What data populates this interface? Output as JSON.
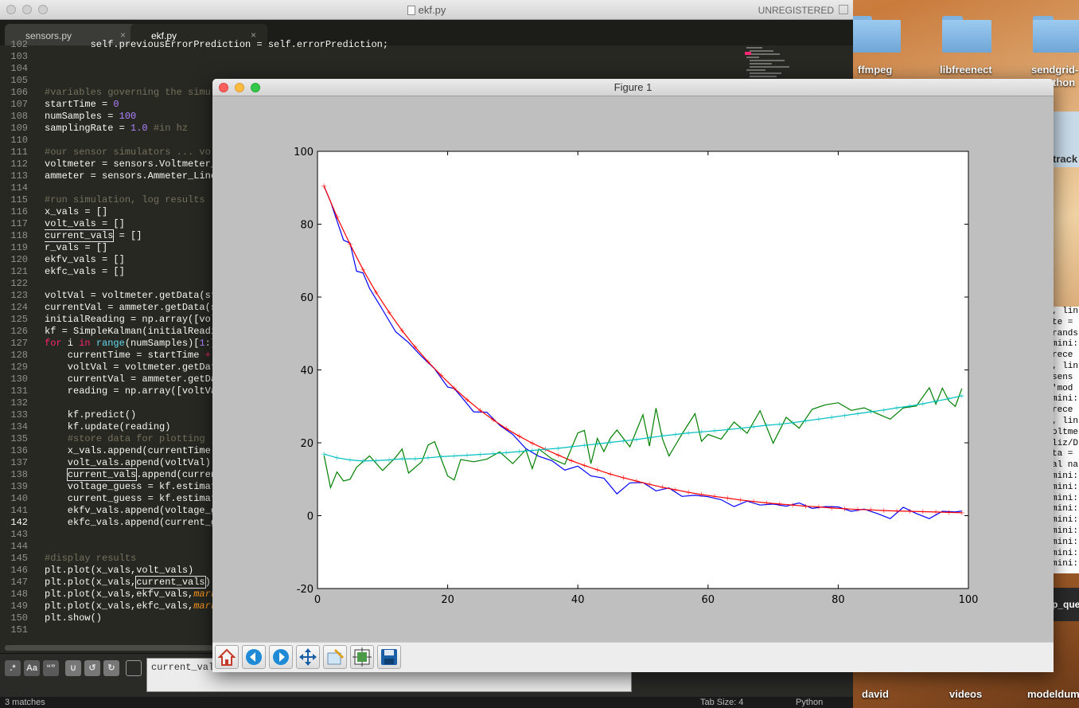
{
  "editor": {
    "window_title": "ekf.py",
    "unregistered": "UNREGISTERED",
    "tabs": [
      {
        "label": "sensors.py",
        "close": "×"
      },
      {
        "label": "ekf.py",
        "close": "×"
      }
    ],
    "lines": [
      {
        "num": "102",
        "html": "        self.previousErrorPrediction = self.errorPrediction;"
      },
      {
        "num": "103",
        "html": ""
      },
      {
        "num": "104",
        "html": ""
      },
      {
        "num": "105",
        "html": ""
      },
      {
        "num": "106",
        "html": "<span class='c'>#variables governing the simul</span>"
      },
      {
        "num": "107",
        "html": "startTime = <span class='n'>0</span>"
      },
      {
        "num": "108",
        "html": "numSamples = <span class='n'>100</span>"
      },
      {
        "num": "109",
        "html": "samplingRate = <span class='n'>1.0</span> <span class='c'>#in hz</span>"
      },
      {
        "num": "110",
        "html": ""
      },
      {
        "num": "111",
        "html": "<span class='c'>#our sensor simulators ... vol</span>"
      },
      {
        "num": "112",
        "html": "voltmeter = sensors.Voltmeter_"
      },
      {
        "num": "113",
        "html": "ammeter = sensors.Ammeter_Line"
      },
      {
        "num": "114",
        "html": ""
      },
      {
        "num": "115",
        "html": "<span class='c'>#run simulation, log results</span>"
      },
      {
        "num": "116",
        "html": "x_vals = []"
      },
      {
        "num": "117",
        "html": "volt_vals = []"
      },
      {
        "num": "118",
        "html": "<span class='hl'>current_vals</span> = []"
      },
      {
        "num": "119",
        "html": "r_vals = []"
      },
      {
        "num": "120",
        "html": "ekfv_vals = []"
      },
      {
        "num": "121",
        "html": "ekfc_vals = []"
      },
      {
        "num": "122",
        "html": ""
      },
      {
        "num": "123",
        "html": "voltVal = voltmeter.getData(st"
      },
      {
        "num": "124",
        "html": "currentVal = ammeter.getData(s"
      },
      {
        "num": "125",
        "html": "initialReading = np.array([vol"
      },
      {
        "num": "126",
        "html": "kf = SimpleKalman(initialReadi"
      },
      {
        "num": "127",
        "html": "<span class='k'>for</span> i <span class='k'>in</span> <span class='b'>range</span>(numSamples)[<span class='n'>1</span>:]"
      },
      {
        "num": "128",
        "html": "    currentTime = startTime <span class='k'>+</span>"
      },
      {
        "num": "129",
        "html": "    voltVal = voltmeter.getDat"
      },
      {
        "num": "130",
        "html": "    currentVal = ammeter.getDa"
      },
      {
        "num": "131",
        "html": "    reading = np.array([voltVa"
      },
      {
        "num": "132",
        "html": ""
      },
      {
        "num": "133",
        "html": "    kf.predict()"
      },
      {
        "num": "134",
        "html": "    kf.update(reading)"
      },
      {
        "num": "135",
        "html": "    <span class='c'>#store data for plotting</span>"
      },
      {
        "num": "136",
        "html": "    x_vals.append(currentTime)"
      },
      {
        "num": "137",
        "html": "    volt_vals.append(voltVal)"
      },
      {
        "num": "138",
        "html": "    <span class='hl'>current_vals</span>.append(curren"
      },
      {
        "num": "139",
        "html": "    voltage_guess = kf.estimat"
      },
      {
        "num": "140",
        "html": "    current_guess = kf.estimat"
      },
      {
        "num": "141",
        "html": "    ekfv_vals.append(voltage_g"
      },
      {
        "num": "142",
        "html": "    ekfc_vals.append(current_g"
      },
      {
        "num": "143",
        "html": ""
      },
      {
        "num": "144",
        "html": ""
      },
      {
        "num": "145",
        "html": "<span class='c'>#display results</span>"
      },
      {
        "num": "146",
        "html": "plt.plot(x_vals,volt_vals)"
      },
      {
        "num": "147",
        "html": "plt.plot(x_vals,<span class='hl'>current_vals</span>)"
      },
      {
        "num": "148",
        "html": "plt.plot(x_vals,ekfv_vals,<span class='i'>mark</span>"
      },
      {
        "num": "149",
        "html": "plt.plot(x_vals,ekfc_vals,<span class='i'>mark</span>"
      },
      {
        "num": "150",
        "html": "plt.show()"
      },
      {
        "num": "151",
        "html": ""
      }
    ],
    "find_buttons": [
      ".*",
      "Aa",
      "“”"
    ],
    "find_value": "current_vals",
    "status_left": "3 matches",
    "status_tab": "Tab Size: 4",
    "status_lang": "Python"
  },
  "desktop": {
    "folders": [
      {
        "label": "ffmpeg"
      },
      {
        "label": "libfreenect"
      },
      {
        "label": "sendgrid-"
      }
    ],
    "folder_sub": "thon",
    "track_label": "track",
    "bottom_labels": [
      {
        "label": "david"
      },
      {
        "label": "videos"
      },
      {
        "label": "modeldum"
      }
    ],
    "terminal_lines": [
      ", lin",
      "te =",
      "rands",
      "mini:",
      " rece",
      ", lin",
      " sens",
      " 'mod",
      "mini:",
      " rece",
      ", lin",
      "oltme",
      "liz/D",
      "ta =",
      "al na",
      "mini:",
      "mini:",
      "mini:",
      "mini:",
      "mini:",
      "mini:",
      "mini:",
      "mini:",
      "mini:"
    ],
    "terminal_tab": "p_que"
  },
  "figure": {
    "title": "Figure 1",
    "toolbar": [
      {
        "name": "home-icon"
      },
      {
        "name": "back-icon"
      },
      {
        "name": "forward-icon"
      },
      {
        "name": "pan-icon"
      },
      {
        "name": "zoom-icon"
      },
      {
        "name": "subplots-icon"
      },
      {
        "name": "save-icon"
      }
    ]
  },
  "chart_data": {
    "type": "line",
    "xlim": [
      0,
      100
    ],
    "ylim": [
      -20,
      100
    ],
    "xticks": [
      0,
      20,
      40,
      60,
      80,
      100
    ],
    "yticks": [
      -20,
      0,
      20,
      40,
      60,
      80,
      100
    ],
    "grid": false,
    "series": [
      {
        "color": "#0000ff",
        "marker": "none",
        "x": [
          1,
          2,
          4,
          5,
          6,
          7,
          8,
          10,
          12,
          14,
          16,
          18,
          20,
          21,
          22,
          24,
          26,
          28,
          30,
          32,
          34,
          36,
          38,
          40,
          42,
          44,
          46,
          48,
          50,
          52,
          54,
          56,
          58,
          60,
          62,
          64,
          66,
          68,
          70,
          72,
          74,
          76,
          78,
          80,
          82,
          84,
          86,
          88,
          90,
          92,
          94,
          96,
          98,
          99
        ],
        "y": [
          90.4,
          86.2,
          75.6,
          74.8,
          67.1,
          66.6,
          62.4,
          56.5,
          50.5,
          47.5,
          43.7,
          40.3,
          35.3,
          34.9,
          32.8,
          28.5,
          28.4,
          24.8,
          22.3,
          18.4,
          16.3,
          15.1,
          12.5,
          13.6,
          10.9,
          10.3,
          6.0,
          9.0,
          9.1,
          6.8,
          7.6,
          5.3,
          5.6,
          5.2,
          4.4,
          2.5,
          4.0,
          2.9,
          3.2,
          2.6,
          3.5,
          2.0,
          2.5,
          2.4,
          1.2,
          1.8,
          0.6,
          -0.8,
          2.3,
          0.6,
          -0.8,
          1.2,
          1.0,
          1.3
        ]
      },
      {
        "color": "#ff0000",
        "marker": "+",
        "x": [
          1,
          3,
          5,
          7,
          9,
          11,
          13,
          15,
          17,
          19,
          21,
          23,
          25,
          27,
          29,
          31,
          33,
          35,
          37,
          39,
          41,
          43,
          45,
          47,
          49,
          51,
          53,
          55,
          57,
          59,
          61,
          63,
          65,
          67,
          69,
          71,
          73,
          75,
          77,
          79,
          81,
          83,
          85,
          87,
          89,
          91,
          93,
          95,
          97,
          99
        ],
        "y": [
          90.5,
          82,
          74.5,
          67.5,
          61.3,
          55.8,
          50.8,
          46.3,
          42.2,
          38.5,
          35.0,
          31.8,
          28.9,
          26.3,
          23.9,
          21.8,
          19.9,
          18.2,
          16.6,
          15.1,
          13.8,
          12.6,
          11.4,
          10.4,
          9.5,
          8.6,
          7.8,
          7.1,
          6.4,
          5.8,
          5.3,
          4.8,
          4.3,
          3.9,
          3.5,
          3.2,
          2.9,
          2.6,
          2.4,
          2.1,
          1.9,
          1.7,
          1.6,
          1.4,
          1.3,
          1.2,
          1.1,
          1.0,
          0.9,
          0.8
        ]
      },
      {
        "color": "#008000",
        "marker": "none",
        "x": [
          1,
          2,
          3,
          4,
          5,
          6,
          8,
          10,
          12,
          13,
          14,
          16,
          17,
          18,
          20,
          21,
          22,
          24,
          26,
          28,
          30,
          32,
          33,
          34,
          36,
          38,
          40,
          41,
          42,
          43,
          44,
          45,
          46,
          48,
          50,
          51,
          52,
          53,
          54,
          56,
          58,
          59,
          60,
          62,
          64,
          66,
          68,
          70,
          72,
          74,
          76,
          78,
          80,
          82,
          84,
          86,
          88,
          90,
          92,
          94,
          95,
          96,
          97,
          98,
          99
        ],
        "y": [
          16.6,
          7.7,
          12.0,
          9.5,
          10.0,
          13.3,
          16.4,
          12.4,
          16.0,
          18.3,
          11.7,
          14.8,
          19.4,
          20.3,
          10.9,
          9.8,
          15.4,
          14.8,
          15.5,
          17.5,
          14.3,
          18.1,
          12.9,
          18.3,
          15.6,
          14.1,
          22.7,
          23.4,
          14.3,
          21.2,
          17.6,
          21.3,
          23.5,
          18.9,
          27.7,
          19.1,
          29.5,
          21.1,
          16.4,
          22.4,
          28.0,
          20.4,
          22.3,
          21.0,
          25.7,
          22.6,
          28.8,
          19.9,
          27.0,
          24.0,
          29.2,
          30.4,
          31.0,
          28.9,
          29.6,
          28.0,
          26.5,
          29.6,
          30.1,
          35.1,
          30.6,
          35.0,
          31.5,
          30.0,
          34.9
        ]
      },
      {
        "color": "#00bfbf",
        "marker": "+",
        "x": [
          1,
          3,
          5,
          7,
          9,
          11,
          13,
          15,
          17,
          19,
          21,
          23,
          25,
          27,
          29,
          31,
          33,
          35,
          37,
          39,
          41,
          43,
          45,
          47,
          49,
          51,
          53,
          55,
          57,
          59,
          61,
          63,
          65,
          67,
          69,
          71,
          73,
          75,
          77,
          79,
          81,
          83,
          85,
          87,
          89,
          91,
          93,
          95,
          97,
          99
        ],
        "y": [
          16.9,
          15.9,
          15.3,
          15.0,
          15.1,
          15.3,
          15.6,
          15.6,
          15.9,
          16.2,
          16.4,
          16.6,
          16.8,
          17.0,
          17.3,
          17.6,
          17.9,
          18.2,
          18.5,
          18.9,
          19.3,
          19.7,
          20.1,
          20.5,
          20.9,
          21.4,
          21.9,
          22.3,
          22.7,
          23.0,
          23.3,
          23.6,
          24.0,
          24.4,
          24.8,
          25.1,
          25.5,
          26.0,
          26.5,
          27.0,
          27.5,
          28.0,
          28.5,
          29.0,
          29.6,
          30.1,
          30.7,
          31.4,
          32.1,
          32.9
        ]
      }
    ]
  }
}
